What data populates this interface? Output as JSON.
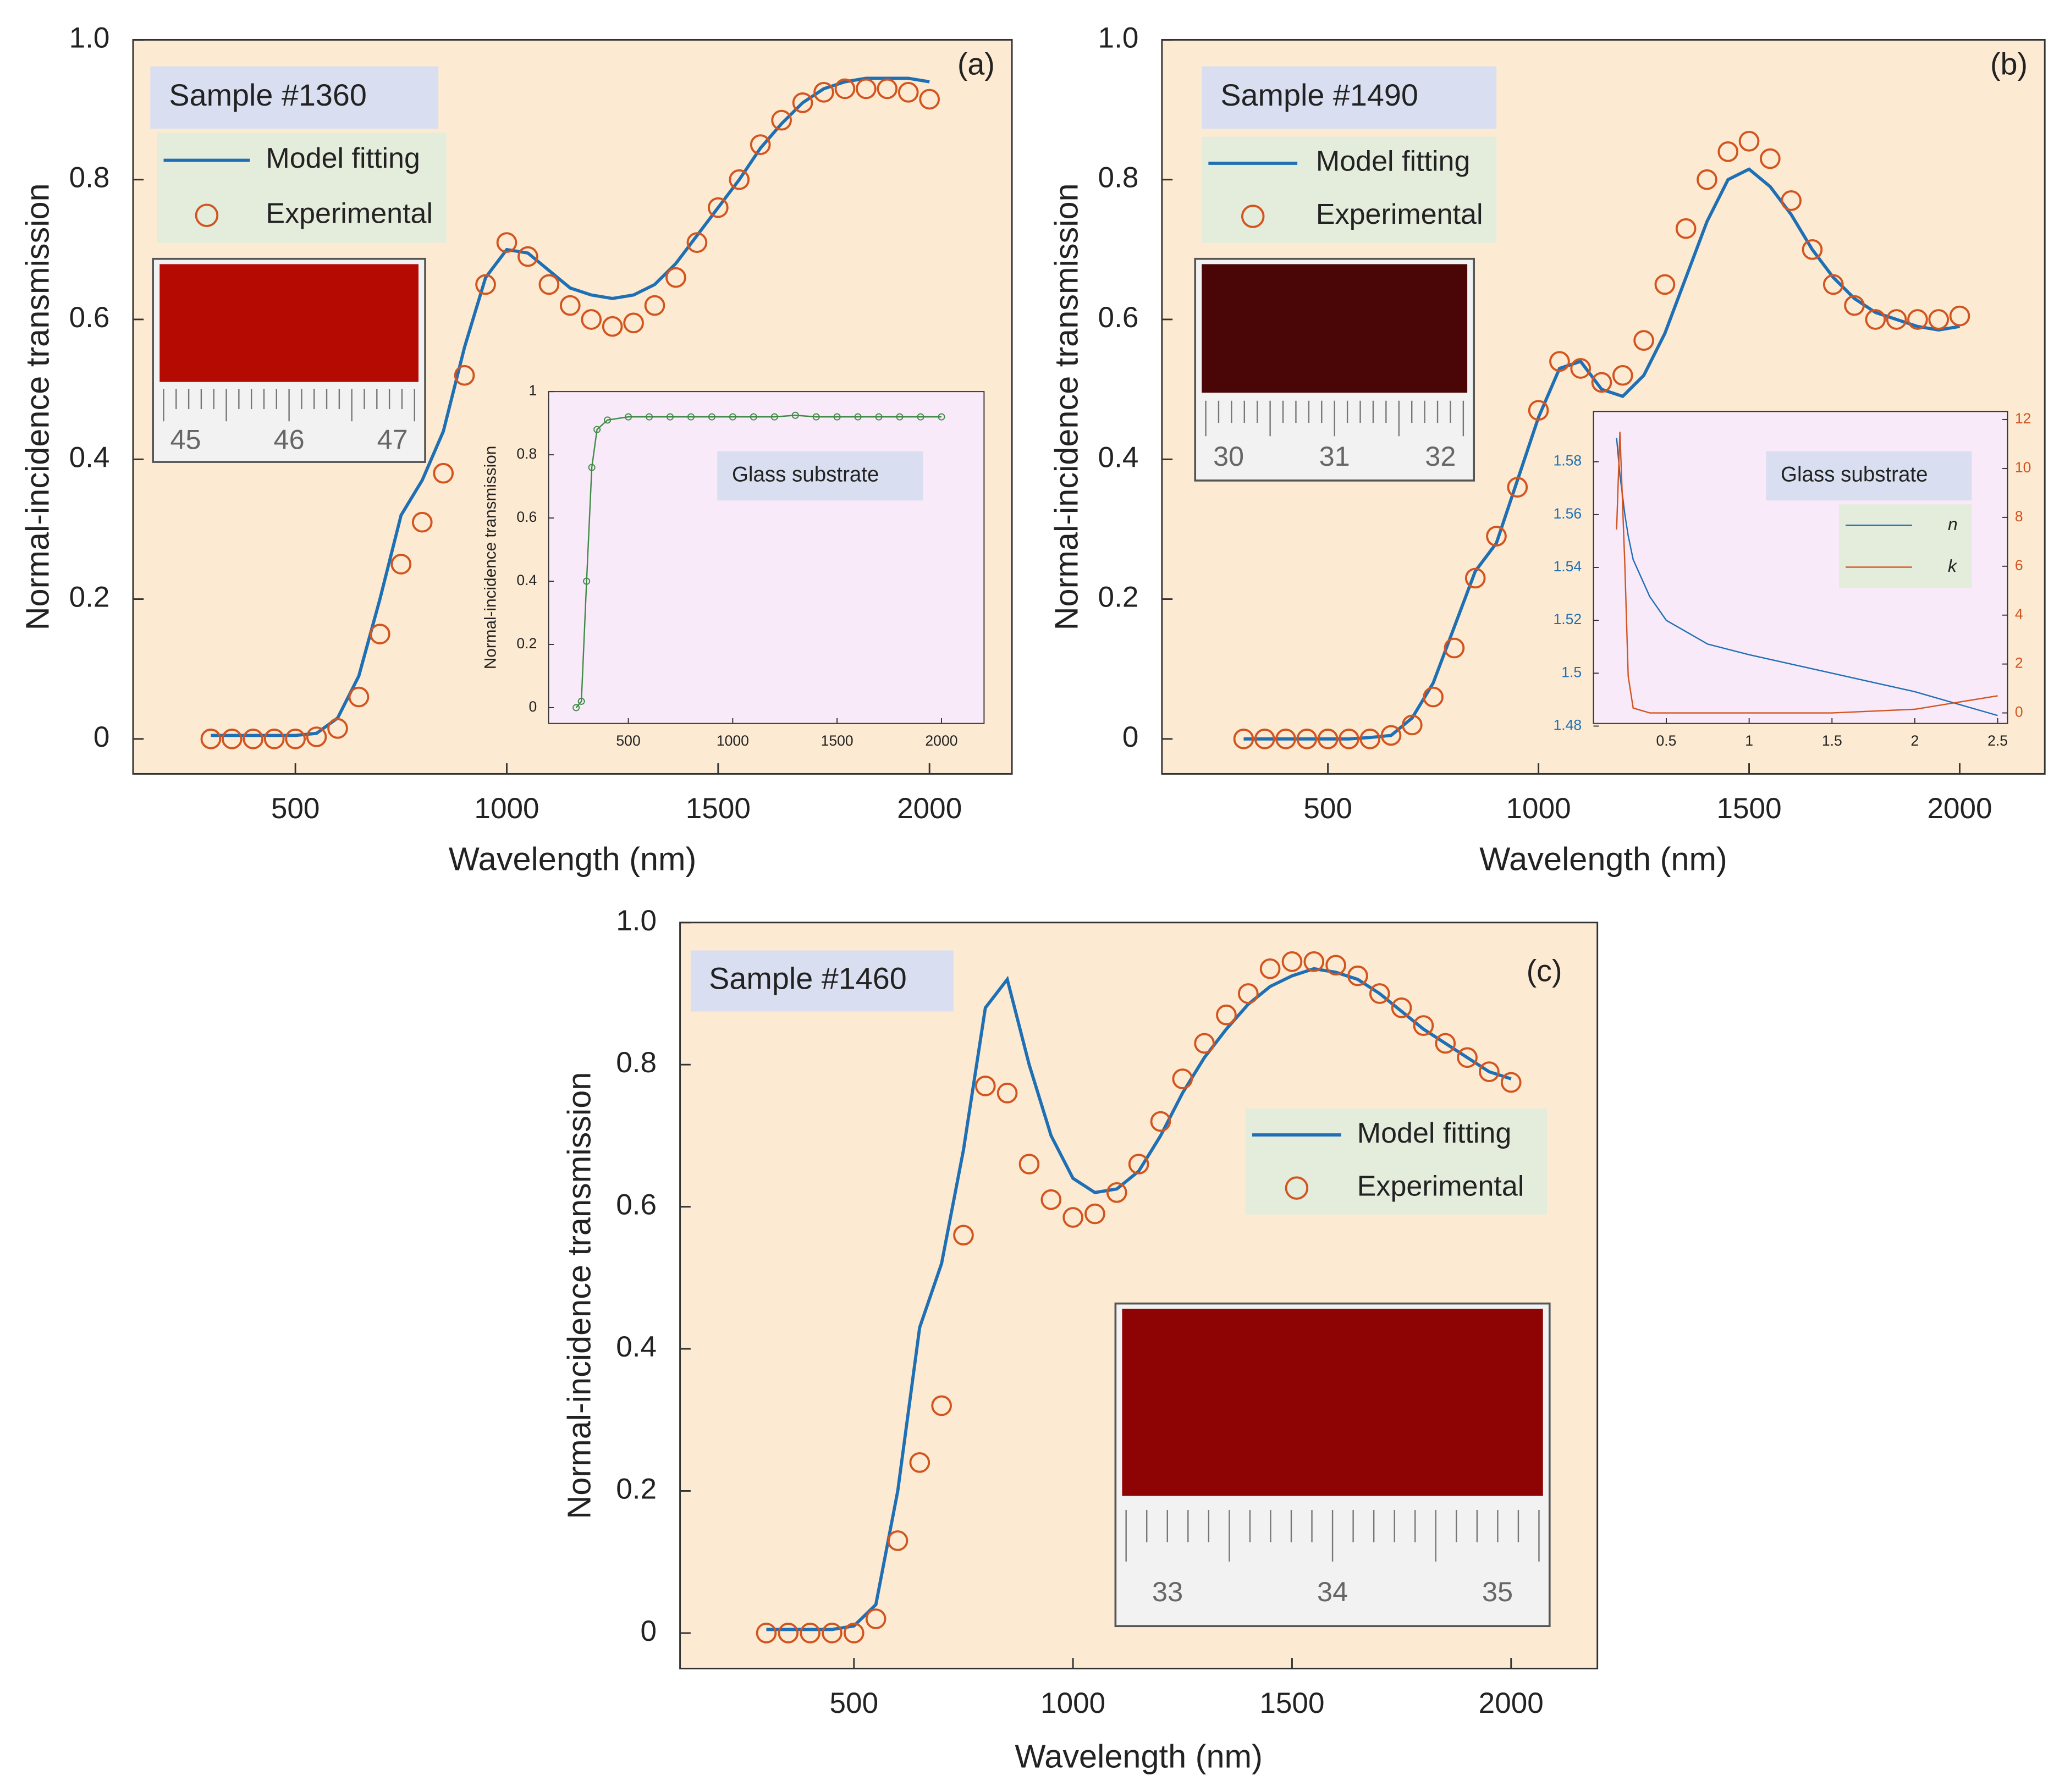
{
  "chart_data": [
    {
      "type": "line",
      "title": "Sample #1360",
      "panel_label": "(a)",
      "x_label": "Wavelength (nm)",
      "y_label": "Normal-incidence transmission",
      "x": [
        300,
        350,
        400,
        450,
        500,
        550,
        600,
        650,
        700,
        750,
        800,
        850,
        900,
        950,
        1000,
        1050,
        1100,
        1150,
        1200,
        1250,
        1300,
        1350,
        1400,
        1450,
        1500,
        1550,
        1600,
        1650,
        1700,
        1750,
        1800,
        1850,
        1900,
        1950,
        2000
      ],
      "series": [
        {
          "name": "Model fitting",
          "color": "#1f6fb5",
          "style": "line",
          "values": [
            0.005,
            0.005,
            0.005,
            0.005,
            0.005,
            0.008,
            0.03,
            0.09,
            0.2,
            0.32,
            0.37,
            0.44,
            0.56,
            0.66,
            0.7,
            0.695,
            0.67,
            0.645,
            0.635,
            0.63,
            0.635,
            0.65,
            0.68,
            0.72,
            0.76,
            0.8,
            0.845,
            0.88,
            0.91,
            0.93,
            0.94,
            0.945,
            0.945,
            0.945,
            0.94
          ]
        },
        {
          "name": "Experimental",
          "color": "#d2541f",
          "style": "marker",
          "values": [
            0,
            0,
            0,
            0,
            0,
            0.003,
            0.015,
            0.06,
            0.15,
            0.25,
            0.31,
            0.38,
            0.52,
            0.65,
            0.71,
            0.69,
            0.65,
            0.62,
            0.6,
            0.59,
            0.595,
            0.62,
            0.66,
            0.71,
            0.76,
            0.8,
            0.85,
            0.885,
            0.91,
            0.925,
            0.93,
            0.93,
            0.93,
            0.925,
            0.915
          ]
        }
      ],
      "xlim": [
        116,
        2195
      ],
      "xticks": [
        500,
        1000,
        1500,
        2000
      ],
      "ylim": [
        -0.05,
        1.0
      ],
      "yticks": [
        0,
        0.2,
        0.4,
        0.6,
        0.8,
        {
          "value": 1,
          "label": "1.0"
        }
      ],
      "photo_scale": [
        "45",
        "46",
        "47"
      ],
      "inset": {
        "type": "line",
        "title": "Glass substrate",
        "y_label": "Normal-incidence transmission",
        "x": [
          250,
          275,
          300,
          325,
          350,
          400,
          500,
          600,
          700,
          800,
          900,
          1000,
          1100,
          1200,
          1300,
          1400,
          1500,
          1600,
          1700,
          1800,
          1900,
          2000
        ],
        "series": [
          {
            "color": "#3f8a46",
            "style": "line-marker",
            "values": [
              0,
              0.02,
              0.4,
              0.76,
              0.88,
              0.91,
              0.92,
              0.92,
              0.92,
              0.92,
              0.92,
              0.92,
              0.92,
              0.92,
              0.925,
              0.92,
              0.92,
              0.92,
              0.92,
              0.92,
              0.92,
              0.92
            ]
          }
        ],
        "xlim": [
          118,
          2204
        ],
        "xticks": [
          500,
          1000,
          1500,
          2000
        ],
        "ylim": [
          -0.05,
          1
        ],
        "yticks": [
          0,
          0.2,
          0.4,
          0.6,
          0.8,
          1
        ]
      }
    },
    {
      "type": "line",
      "title": "Sample #1490",
      "panel_label": "(b)",
      "x_label": "Wavelength (nm)",
      "y_label": "Normal-incidence transmission",
      "x": [
        300,
        350,
        400,
        450,
        500,
        550,
        600,
        650,
        700,
        750,
        800,
        850,
        900,
        950,
        1000,
        1050,
        1100,
        1150,
        1200,
        1250,
        1300,
        1350,
        1400,
        1450,
        1500,
        1550,
        1600,
        1650,
        1700,
        1750,
        1800,
        1850,
        1900,
        1950,
        2000
      ],
      "series": [
        {
          "name": "Model fitting",
          "color": "#1f6fb5",
          "style": "line",
          "values": [
            0,
            0,
            0,
            0,
            0,
            0,
            0.002,
            0.005,
            0.03,
            0.08,
            0.16,
            0.24,
            0.28,
            0.37,
            0.46,
            0.53,
            0.54,
            0.5,
            0.49,
            0.52,
            0.58,
            0.66,
            0.74,
            0.8,
            0.815,
            0.79,
            0.75,
            0.7,
            0.66,
            0.63,
            0.61,
            0.6,
            0.59,
            0.585,
            0.59
          ]
        },
        {
          "name": "Experimental",
          "color": "#d2541f",
          "style": "marker",
          "values": [
            0,
            0,
            0,
            0,
            0,
            0,
            0,
            0.005,
            0.02,
            0.06,
            0.13,
            0.23,
            0.29,
            0.36,
            0.47,
            0.54,
            0.53,
            0.51,
            0.52,
            0.57,
            0.65,
            0.73,
            0.8,
            0.84,
            0.855,
            0.83,
            0.77,
            0.7,
            0.65,
            0.62,
            0.6,
            0.6,
            0.6,
            0.6,
            0.605
          ]
        }
      ],
      "xlim": [
        106,
        2202
      ],
      "xticks": [
        500,
        1000,
        1500,
        2000
      ],
      "ylim": [
        -0.05,
        1.0
      ],
      "yticks": [
        0,
        0.2,
        0.4,
        0.6,
        0.8,
        {
          "value": 1,
          "label": "1.0"
        }
      ],
      "photo_scale": [
        "30",
        "31",
        "32"
      ],
      "inset": {
        "type": "line",
        "title": "Glass substrate",
        "x": [
          0.2,
          0.22,
          0.25,
          0.27,
          0.3,
          0.4,
          0.5,
          0.75,
          1,
          1.5,
          2,
          2.5
        ],
        "series": [
          {
            "name": "n",
            "color": "#1f6fb5",
            "style": "line",
            "values": [
              1.589,
              1.575,
              1.56,
              1.552,
              1.543,
              1.529,
              1.52,
              1.511,
              1.507,
              1.5,
              1.493,
              1.484
            ]
          },
          {
            "name": "k",
            "color": "#d2541f",
            "style": "line",
            "axis": "y2",
            "values": [
              7.5,
              11.5,
              6,
              1.5,
              0.2,
              0,
              0,
              0,
              0,
              0,
              0.15,
              0.7
            ]
          }
        ],
        "xlim": [
          0.06,
          2.56
        ],
        "xticks": [
          0.5,
          1,
          1.5,
          2,
          2.5
        ],
        "ylim": [
          1.481,
          1.599
        ],
        "yticks": [
          1.48,
          1.5,
          1.52,
          1.54,
          1.56,
          1.58
        ],
        "y2lim": [
          -0.43,
          12.33
        ],
        "y2ticks": [
          0,
          2,
          4,
          6,
          8,
          10,
          12
        ]
      }
    },
    {
      "type": "line",
      "title": "Sample #1460",
      "panel_label": "(c)",
      "x_label": "Wavelength (nm)",
      "y_label": "Normal-incidence transmission",
      "x": [
        300,
        350,
        400,
        450,
        500,
        550,
        600,
        650,
        700,
        750,
        800,
        850,
        900,
        950,
        1000,
        1050,
        1100,
        1150,
        1200,
        1250,
        1300,
        1350,
        1400,
        1450,
        1500,
        1550,
        1600,
        1650,
        1700,
        1750,
        1800,
        1850,
        1900,
        1950,
        2000
      ],
      "series": [
        {
          "name": "Model fitting",
          "color": "#1f6fb5",
          "style": "line",
          "values": [
            0.005,
            0.005,
            0.005,
            0.005,
            0.01,
            0.04,
            0.2,
            0.43,
            0.52,
            0.68,
            0.88,
            0.92,
            0.8,
            0.7,
            0.64,
            0.62,
            0.625,
            0.65,
            0.7,
            0.76,
            0.81,
            0.85,
            0.885,
            0.91,
            0.925,
            0.935,
            0.93,
            0.92,
            0.9,
            0.875,
            0.85,
            0.83,
            0.81,
            0.79,
            0.78
          ]
        },
        {
          "name": "Experimental",
          "color": "#d2541f",
          "style": "marker",
          "values": [
            0,
            0,
            0,
            0,
            0,
            0.02,
            0.13,
            0.24,
            0.32,
            0.56,
            0.77,
            0.76,
            0.66,
            0.61,
            0.585,
            0.59,
            0.62,
            0.66,
            0.72,
            0.78,
            0.83,
            0.87,
            0.9,
            0.935,
            0.945,
            0.945,
            0.94,
            0.925,
            0.9,
            0.88,
            0.855,
            0.83,
            0.81,
            0.79,
            0.775
          ]
        }
      ],
      "xlim": [
        103,
        2197
      ],
      "xticks": [
        500,
        1000,
        1500,
        2000
      ],
      "ylim": [
        -0.05,
        1.0
      ],
      "yticks": [
        0,
        0.2,
        0.4,
        0.6,
        0.8,
        {
          "value": 1,
          "label": "1.0"
        }
      ],
      "photo_scale": [
        "33",
        "34",
        "35"
      ]
    }
  ]
}
